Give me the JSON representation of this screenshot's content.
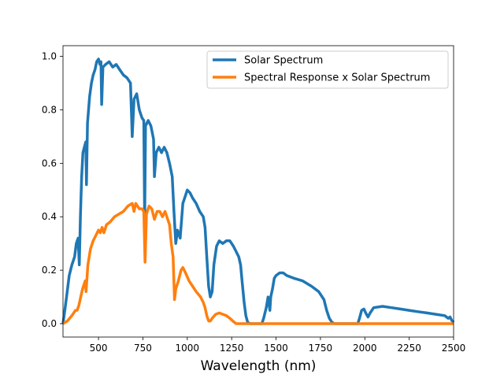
{
  "chart_data": {
    "type": "line",
    "xlabel": "Wavelength (nm)",
    "ylabel": "",
    "xlim": [
      300,
      2500
    ],
    "ylim": [
      -0.05,
      1.04
    ],
    "grid": false,
    "legend_position": "top-right",
    "x_ticks": [
      500,
      750,
      1000,
      1250,
      1500,
      1750,
      2000,
      2250,
      2500
    ],
    "y_ticks": [
      0.0,
      0.2,
      0.4,
      0.6,
      0.8,
      1.0
    ],
    "x_tick_labels": [
      "500",
      "750",
      "1000",
      "1250",
      "1500",
      "1750",
      "2000",
      "2250",
      "2500"
    ],
    "y_tick_labels": [
      "0.0",
      "0.2",
      "0.4",
      "0.6",
      "0.8",
      "1.0"
    ],
    "series": [
      {
        "name": "Solar Spectrum",
        "color": "#1f77b4",
        "points": [
          [
            300,
            0.0
          ],
          [
            310,
            0.05
          ],
          [
            320,
            0.1
          ],
          [
            335,
            0.18
          ],
          [
            350,
            0.22
          ],
          [
            365,
            0.25
          ],
          [
            375,
            0.3
          ],
          [
            385,
            0.32
          ],
          [
            392,
            0.22
          ],
          [
            398,
            0.4
          ],
          [
            405,
            0.55
          ],
          [
            412,
            0.64
          ],
          [
            420,
            0.66
          ],
          [
            428,
            0.68
          ],
          [
            432,
            0.52
          ],
          [
            438,
            0.75
          ],
          [
            450,
            0.85
          ],
          [
            460,
            0.9
          ],
          [
            470,
            0.93
          ],
          [
            480,
            0.95
          ],
          [
            490,
            0.98
          ],
          [
            500,
            0.99
          ],
          [
            508,
            0.97
          ],
          [
            514,
            0.98
          ],
          [
            518,
            0.82
          ],
          [
            525,
            0.96
          ],
          [
            540,
            0.97
          ],
          [
            560,
            0.98
          ],
          [
            580,
            0.96
          ],
          [
            600,
            0.97
          ],
          [
            620,
            0.95
          ],
          [
            640,
            0.93
          ],
          [
            660,
            0.92
          ],
          [
            680,
            0.9
          ],
          [
            690,
            0.7
          ],
          [
            700,
            0.84
          ],
          [
            715,
            0.86
          ],
          [
            730,
            0.8
          ],
          [
            745,
            0.77
          ],
          [
            755,
            0.76
          ],
          [
            760,
            0.38
          ],
          [
            765,
            0.74
          ],
          [
            780,
            0.76
          ],
          [
            795,
            0.74
          ],
          [
            810,
            0.69
          ],
          [
            815,
            0.55
          ],
          [
            825,
            0.64
          ],
          [
            840,
            0.66
          ],
          [
            855,
            0.64
          ],
          [
            870,
            0.66
          ],
          [
            885,
            0.64
          ],
          [
            900,
            0.6
          ],
          [
            915,
            0.55
          ],
          [
            925,
            0.42
          ],
          [
            935,
            0.3
          ],
          [
            945,
            0.35
          ],
          [
            960,
            0.32
          ],
          [
            975,
            0.45
          ],
          [
            990,
            0.48
          ],
          [
            1000,
            0.5
          ],
          [
            1015,
            0.49
          ],
          [
            1030,
            0.47
          ],
          [
            1050,
            0.45
          ],
          [
            1070,
            0.42
          ],
          [
            1090,
            0.4
          ],
          [
            1100,
            0.36
          ],
          [
            1110,
            0.25
          ],
          [
            1120,
            0.14
          ],
          [
            1130,
            0.1
          ],
          [
            1140,
            0.12
          ],
          [
            1150,
            0.22
          ],
          [
            1165,
            0.29
          ],
          [
            1180,
            0.31
          ],
          [
            1200,
            0.3
          ],
          [
            1220,
            0.31
          ],
          [
            1240,
            0.31
          ],
          [
            1260,
            0.29
          ],
          [
            1275,
            0.27
          ],
          [
            1290,
            0.25
          ],
          [
            1300,
            0.22
          ],
          [
            1310,
            0.15
          ],
          [
            1320,
            0.08
          ],
          [
            1330,
            0.03
          ],
          [
            1340,
            0.005
          ],
          [
            1355,
            0.0
          ],
          [
            1420,
            0.0
          ],
          [
            1430,
            0.02
          ],
          [
            1445,
            0.06
          ],
          [
            1455,
            0.1
          ],
          [
            1465,
            0.05
          ],
          [
            1470,
            0.1
          ],
          [
            1480,
            0.13
          ],
          [
            1490,
            0.17
          ],
          [
            1500,
            0.18
          ],
          [
            1520,
            0.19
          ],
          [
            1540,
            0.19
          ],
          [
            1560,
            0.18
          ],
          [
            1600,
            0.17
          ],
          [
            1650,
            0.16
          ],
          [
            1700,
            0.14
          ],
          [
            1740,
            0.12
          ],
          [
            1770,
            0.09
          ],
          [
            1785,
            0.05
          ],
          [
            1800,
            0.02
          ],
          [
            1815,
            0.005
          ],
          [
            1830,
            0.0
          ],
          [
            1960,
            0.0
          ],
          [
            1970,
            0.02
          ],
          [
            1982,
            0.05
          ],
          [
            1995,
            0.055
          ],
          [
            2005,
            0.04
          ],
          [
            2018,
            0.025
          ],
          [
            2030,
            0.04
          ],
          [
            2050,
            0.06
          ],
          [
            2100,
            0.065
          ],
          [
            2150,
            0.06
          ],
          [
            2200,
            0.055
          ],
          [
            2250,
            0.05
          ],
          [
            2300,
            0.045
          ],
          [
            2350,
            0.04
          ],
          [
            2400,
            0.035
          ],
          [
            2450,
            0.03
          ],
          [
            2470,
            0.02
          ],
          [
            2480,
            0.025
          ],
          [
            2490,
            0.012
          ],
          [
            2500,
            0.005
          ]
        ]
      },
      {
        "name": "Spectral Response x Solar Spectrum",
        "color": "#ff7f0e",
        "points": [
          [
            300,
            0.0
          ],
          [
            325,
            0.01
          ],
          [
            350,
            0.03
          ],
          [
            370,
            0.05
          ],
          [
            380,
            0.05
          ],
          [
            390,
            0.07
          ],
          [
            400,
            0.1
          ],
          [
            410,
            0.13
          ],
          [
            425,
            0.16
          ],
          [
            430,
            0.12
          ],
          [
            440,
            0.22
          ],
          [
            455,
            0.28
          ],
          [
            470,
            0.31
          ],
          [
            485,
            0.33
          ],
          [
            500,
            0.35
          ],
          [
            510,
            0.34
          ],
          [
            520,
            0.36
          ],
          [
            530,
            0.34
          ],
          [
            545,
            0.37
          ],
          [
            565,
            0.38
          ],
          [
            590,
            0.4
          ],
          [
            615,
            0.41
          ],
          [
            640,
            0.42
          ],
          [
            665,
            0.44
          ],
          [
            690,
            0.45
          ],
          [
            700,
            0.42
          ],
          [
            710,
            0.45
          ],
          [
            730,
            0.43
          ],
          [
            745,
            0.43
          ],
          [
            755,
            0.42
          ],
          [
            762,
            0.23
          ],
          [
            770,
            0.41
          ],
          [
            785,
            0.44
          ],
          [
            800,
            0.43
          ],
          [
            815,
            0.39
          ],
          [
            830,
            0.42
          ],
          [
            845,
            0.42
          ],
          [
            860,
            0.4
          ],
          [
            875,
            0.42
          ],
          [
            890,
            0.39
          ],
          [
            900,
            0.37
          ],
          [
            910,
            0.3
          ],
          [
            920,
            0.25
          ],
          [
            928,
            0.09
          ],
          [
            935,
            0.13
          ],
          [
            950,
            0.16
          ],
          [
            965,
            0.2
          ],
          [
            975,
            0.21
          ],
          [
            990,
            0.19
          ],
          [
            1010,
            0.16
          ],
          [
            1030,
            0.14
          ],
          [
            1050,
            0.12
          ],
          [
            1075,
            0.1
          ],
          [
            1090,
            0.08
          ],
          [
            1100,
            0.06
          ],
          [
            1110,
            0.03
          ],
          [
            1120,
            0.01
          ],
          [
            1130,
            0.01
          ],
          [
            1140,
            0.02
          ],
          [
            1160,
            0.035
          ],
          [
            1180,
            0.04
          ],
          [
            1200,
            0.035
          ],
          [
            1220,
            0.03
          ],
          [
            1240,
            0.02
          ],
          [
            1260,
            0.008
          ],
          [
            1275,
            0.0
          ],
          [
            2500,
            0.0
          ]
        ]
      }
    ]
  }
}
